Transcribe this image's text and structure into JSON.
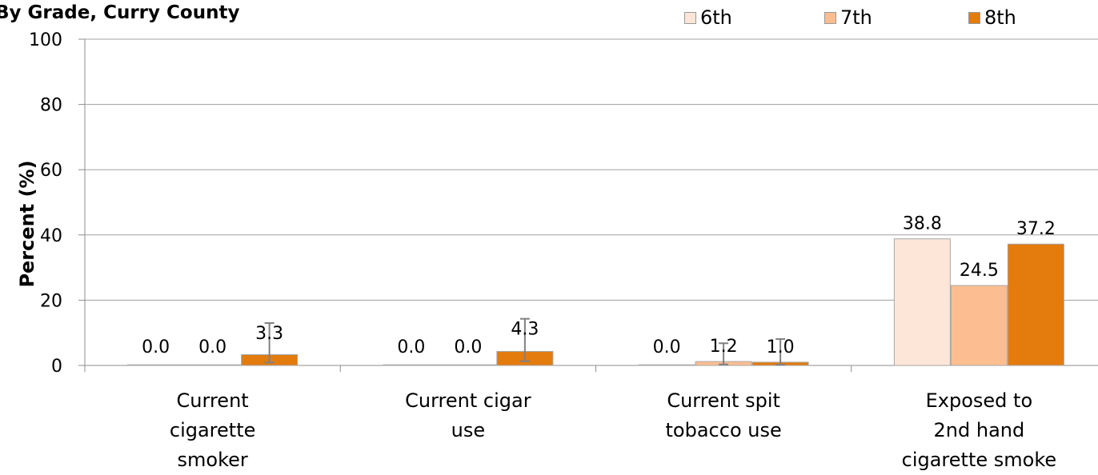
{
  "title": "By Grade, Curry County",
  "chart_data": {
    "type": "bar",
    "title": "By Grade, Curry County",
    "ylabel": "Percent (%)",
    "xlabel": "",
    "ylim": [
      0,
      100
    ],
    "yticks": [
      "0",
      "20",
      "40",
      "60",
      "80",
      "100"
    ],
    "grid": true,
    "legend_position": "top-right",
    "categories": [
      [
        "Current",
        "cigarette",
        "smoker"
      ],
      [
        "Current cigar",
        "use"
      ],
      [
        "Current spit",
        "tobacco use"
      ],
      [
        "Exposed to",
        "2nd hand",
        "cigarette smoke"
      ]
    ],
    "series": [
      {
        "name": "6th",
        "color": "#fde6d8",
        "values": [
          0.0,
          0.0,
          0.0,
          38.8
        ],
        "labels": [
          "0.0",
          "0.0",
          "0.0",
          "38.8"
        ],
        "error": [
          null,
          null,
          null,
          null
        ]
      },
      {
        "name": "7th",
        "color": "#fcbe91",
        "values": [
          0.0,
          0.0,
          1.2,
          24.5
        ],
        "labels": [
          "0.0",
          "0.0",
          "1.2",
          "24.5"
        ],
        "error": [
          null,
          null,
          [
            0.3,
            6.8
          ],
          null
        ]
      },
      {
        "name": "8th",
        "color": "#e47b0d",
        "values": [
          3.3,
          4.3,
          1.0,
          37.2
        ],
        "labels": [
          "3.3",
          "4.3",
          "1.0",
          "37.2"
        ],
        "error": [
          [
            0.9,
            13.0
          ],
          [
            1.3,
            14.3
          ],
          [
            0.2,
            8.1
          ],
          null
        ]
      }
    ]
  }
}
